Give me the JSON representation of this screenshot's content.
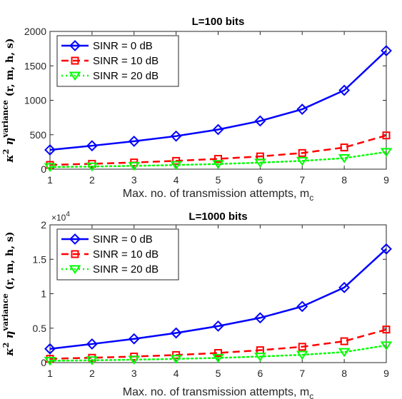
{
  "chart_data": [
    {
      "type": "line",
      "title": "L=100 bits",
      "xlabel": "Max. no. of transmission attempts,  m",
      "xlabel_sub": "c",
      "ylabel": "κ² η^variance (r, m, h, s)",
      "ylabel_parts": {
        "kappa": "κ",
        "kappa_exp": "2",
        "eta": "η",
        "eta_sup": "variance",
        "args": "(r, m, h, s)"
      },
      "x": [
        1,
        2,
        3,
        4,
        5,
        6,
        7,
        8,
        9
      ],
      "xlim": [
        1,
        9
      ],
      "ylim": [
        0,
        2000
      ],
      "yticks": [
        0,
        500,
        1000,
        1500,
        2000
      ],
      "ytick_labels": [
        "0",
        "500",
        "1000",
        "1500",
        "2000"
      ],
      "y_exponent_label": "",
      "grid": false,
      "legend_position": "top-left",
      "series": [
        {
          "name": "SINR = 0 dB",
          "color": "#0000ff",
          "marker": "diamond",
          "dash": "solid",
          "values": [
            280,
            340,
            405,
            480,
            575,
            700,
            870,
            1145,
            1720
          ]
        },
        {
          "name": "SINR = 10 dB",
          "color": "#ff0000",
          "marker": "square",
          "dash": "dashed",
          "values": [
            62,
            78,
            97,
            120,
            150,
            185,
            235,
            315,
            490
          ]
        },
        {
          "name": "SINR = 20 dB",
          "color": "#00ff00",
          "marker": "triangle-down",
          "dash": "dotted",
          "values": [
            30,
            38,
            48,
            60,
            75,
            95,
            120,
            160,
            250
          ]
        }
      ]
    },
    {
      "type": "line",
      "title": "L=1000 bits",
      "xlabel": "Max. no. of transmission attempts, m",
      "xlabel_sub": "c",
      "ylabel": "κ² η^variance (r, m, h, s)",
      "ylabel_parts": {
        "kappa": "κ",
        "kappa_exp": "2",
        "eta": "η",
        "eta_sup": "variance",
        "args": "(r, m, h, s)"
      },
      "x": [
        1,
        2,
        3,
        4,
        5,
        6,
        7,
        8,
        9
      ],
      "xlim": [
        1,
        9
      ],
      "ylim": [
        0,
        20000
      ],
      "yticks": [
        0,
        5000,
        10000,
        15000,
        20000
      ],
      "ytick_labels": [
        "0",
        "0.5",
        "1",
        "1.5",
        "2"
      ],
      "y_exponent_label": "×10",
      "y_exponent_power": "4",
      "grid": false,
      "legend_position": "top-left",
      "series": [
        {
          "name": "SINR = 0 dB",
          "color": "#0000ff",
          "marker": "diamond",
          "dash": "solid",
          "values": [
            2000,
            2700,
            3450,
            4300,
            5300,
            6500,
            8150,
            10900,
            16500
          ]
        },
        {
          "name": "SINR = 10 dB",
          "color": "#ff0000",
          "marker": "square",
          "dash": "dashed",
          "values": [
            550,
            700,
            880,
            1100,
            1400,
            1800,
            2300,
            3100,
            4800
          ]
        },
        {
          "name": "SINR = 20 dB",
          "color": "#00ff00",
          "marker": "triangle-down",
          "dash": "dotted",
          "values": [
            260,
            330,
            420,
            540,
            680,
            880,
            1130,
            1530,
            2500
          ]
        }
      ]
    }
  ],
  "x_tick_labels": [
    "1",
    "2",
    "3",
    "4",
    "5",
    "6",
    "7",
    "8",
    "9"
  ]
}
